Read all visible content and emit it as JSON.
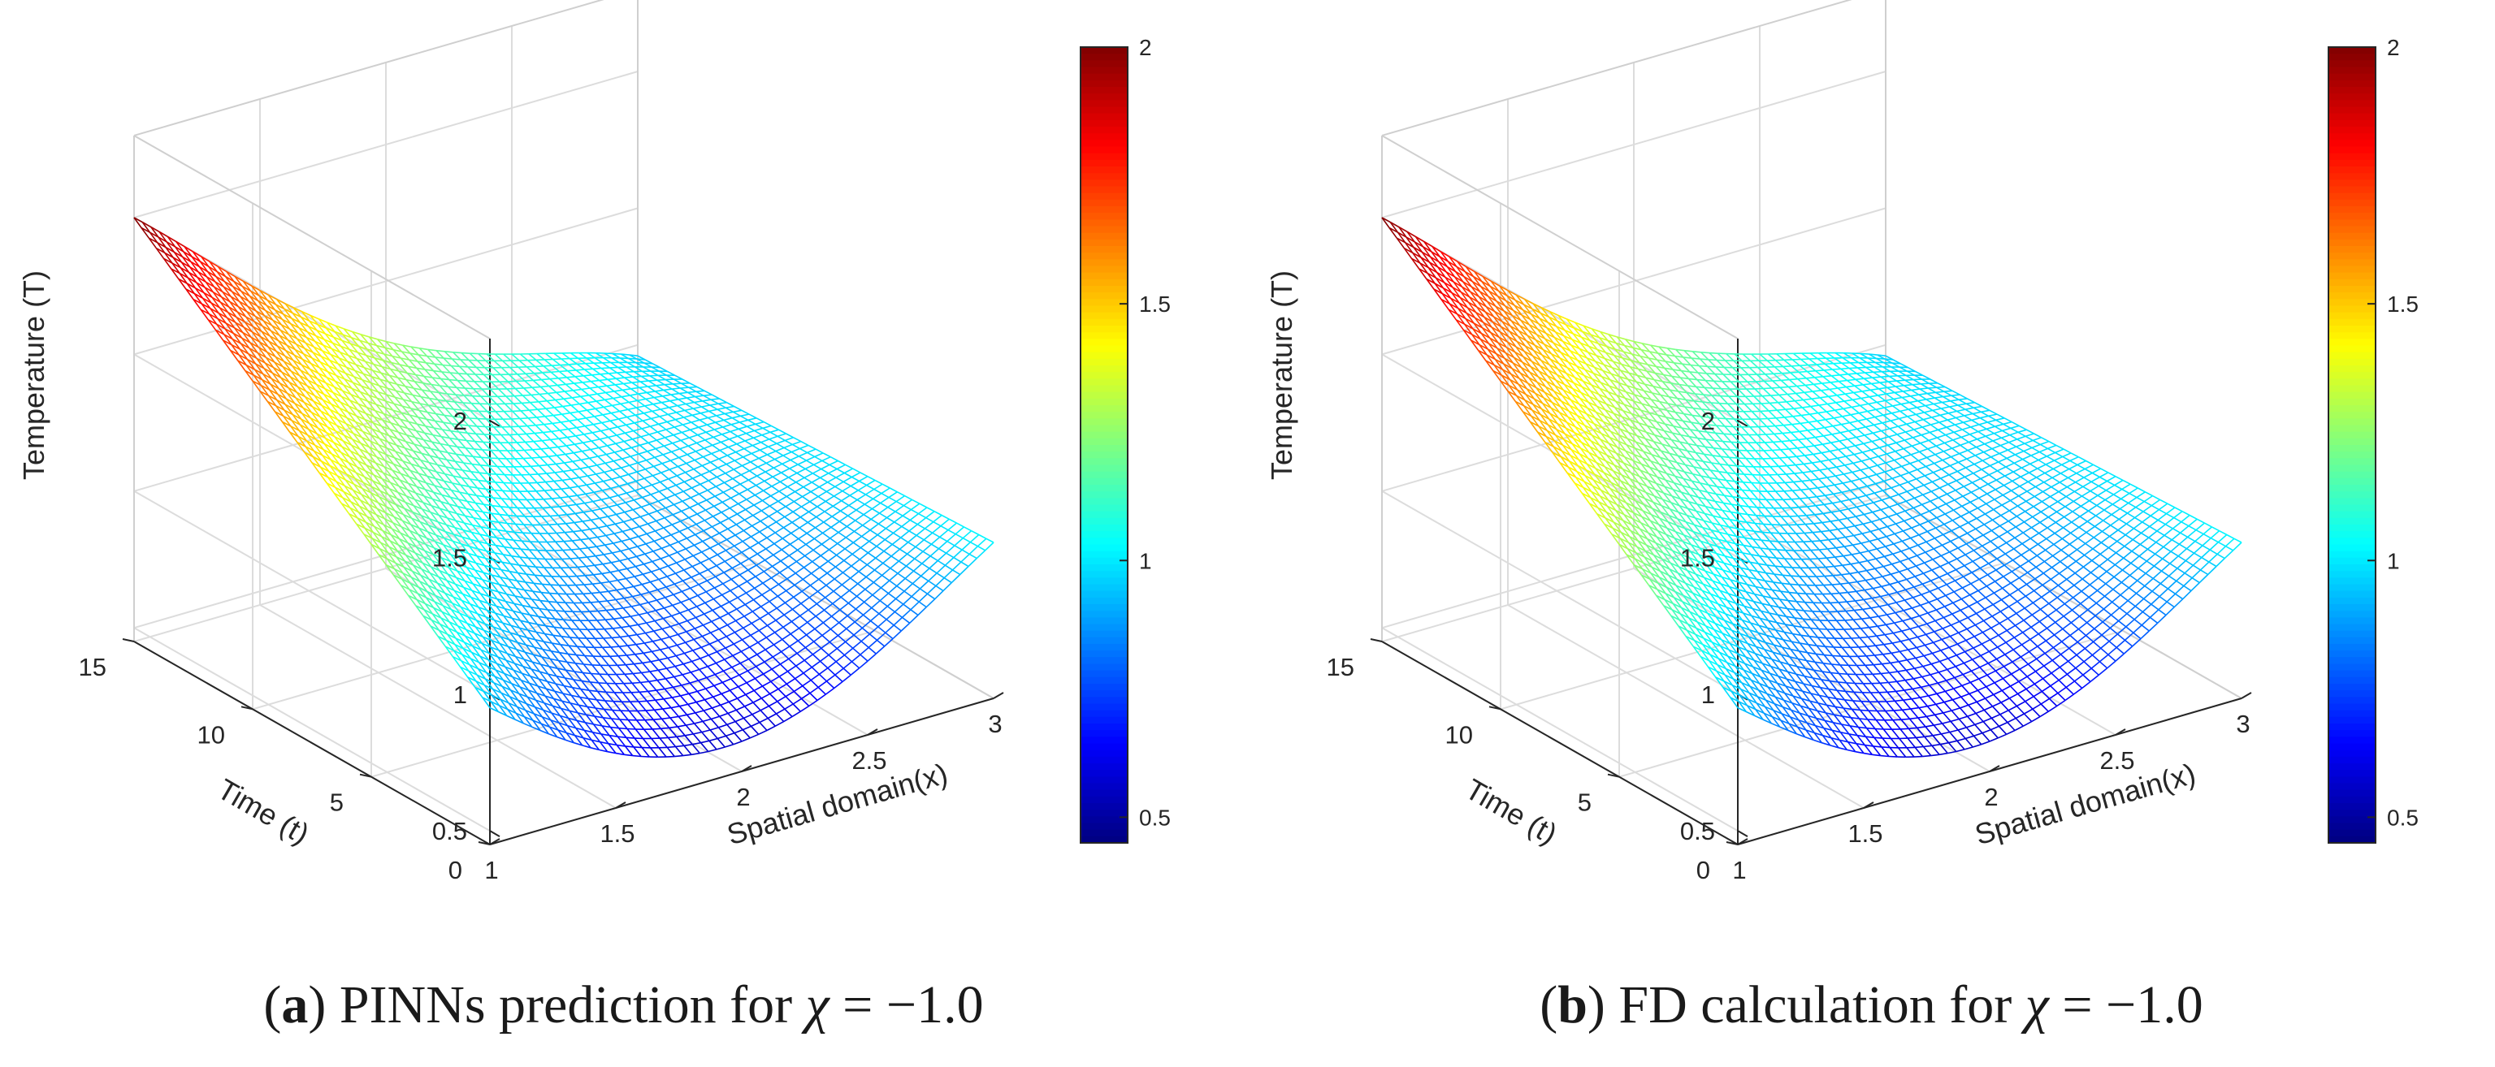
{
  "panels": [
    {
      "caption": {
        "letter": "a",
        "text": "PINNs prediction for",
        "symbol": "χ",
        "rhs": " = −1.0"
      },
      "chart_data": {
        "type": "surface",
        "subtype": "mesh",
        "zlabel": "Temperature (T)",
        "xlabel": "Spatial domain(x)",
        "ylabel": "Time (t)",
        "x_ticks": [
          "1",
          "1.5",
          "2",
          "2.5",
          "3"
        ],
        "y_ticks": [
          "0",
          "5",
          "10",
          "15"
        ],
        "z_ticks": [
          "0.5",
          "1",
          "1.5",
          "2"
        ],
        "xlim": [
          1,
          3
        ],
        "ylim": [
          0,
          15
        ],
        "zlim": [
          0.5,
          2
        ],
        "colormap": "jet",
        "colorbar": {
          "ticks": [
            "0.5",
            "1",
            "1.5",
            "2"
          ],
          "clim": [
            0.45,
            2
          ]
        },
        "boundary_profiles": {
          "x": [
            1,
            1.5,
            2,
            2.5,
            3
          ],
          "T_at_t0": [
            0.95,
            0.65,
            0.56,
            0.72,
            1.02
          ],
          "T_at_t15": [
            2.0,
            1.6,
            1.28,
            1.1,
            0.96
          ]
        },
        "grid": true
      }
    },
    {
      "caption": {
        "letter": "b",
        "text": "FD calculation for",
        "symbol": "χ",
        "rhs": " = −1.0"
      },
      "chart_data": {
        "type": "surface",
        "subtype": "mesh",
        "zlabel": "Temperature (T)",
        "xlabel": "Spatial domain(x)",
        "ylabel": "Time (t)",
        "x_ticks": [
          "1",
          "1.5",
          "2",
          "2.5",
          "3"
        ],
        "y_ticks": [
          "0",
          "5",
          "10",
          "15"
        ],
        "z_ticks": [
          "0.5",
          "1",
          "1.5",
          "2"
        ],
        "xlim": [
          1,
          3
        ],
        "ylim": [
          0,
          15
        ],
        "zlim": [
          0.5,
          2
        ],
        "colormap": "jet",
        "colorbar": {
          "ticks": [
            "0.5",
            "1",
            "1.5",
            "2"
          ],
          "clim": [
            0.45,
            2
          ]
        },
        "boundary_profiles": {
          "x": [
            1,
            1.5,
            2,
            2.5,
            3
          ],
          "T_at_t0": [
            0.95,
            0.65,
            0.56,
            0.72,
            1.02
          ],
          "T_at_t15": [
            2.0,
            1.6,
            1.28,
            1.1,
            0.96
          ]
        },
        "grid": true
      }
    }
  ]
}
